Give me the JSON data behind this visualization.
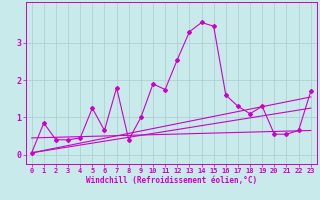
{
  "background_color": "#c8eaea",
  "line_color": "#cc00cc",
  "grid_color": "#aacccc",
  "xlabel": "Windchill (Refroidissement éolien,°C)",
  "xlim": [
    -0.5,
    23.5
  ],
  "ylim": [
    -0.25,
    4.1
  ],
  "xticks": [
    0,
    1,
    2,
    3,
    4,
    5,
    6,
    7,
    8,
    9,
    10,
    11,
    12,
    13,
    14,
    15,
    16,
    17,
    18,
    19,
    20,
    21,
    22,
    23
  ],
  "yticks": [
    0,
    1,
    2,
    3
  ],
  "series1_x": [
    0,
    1,
    2,
    3,
    4,
    5,
    6,
    7,
    8,
    9,
    10,
    11,
    12,
    13,
    14,
    15,
    16,
    17,
    18,
    19,
    20,
    21,
    22,
    23
  ],
  "series1_y": [
    0.05,
    0.85,
    0.4,
    0.4,
    0.45,
    1.25,
    0.65,
    1.8,
    0.4,
    1.0,
    1.9,
    1.75,
    2.55,
    3.3,
    3.55,
    3.45,
    1.6,
    1.3,
    1.1,
    1.3,
    0.55,
    0.55,
    0.65,
    1.7
  ],
  "trend1_x": [
    0,
    23
  ],
  "trend1_y": [
    0.45,
    0.65
  ],
  "trend2_x": [
    0,
    23
  ],
  "trend2_y": [
    0.05,
    1.55
  ],
  "trend3_x": [
    0,
    23
  ],
  "trend3_y": [
    0.05,
    1.25
  ]
}
